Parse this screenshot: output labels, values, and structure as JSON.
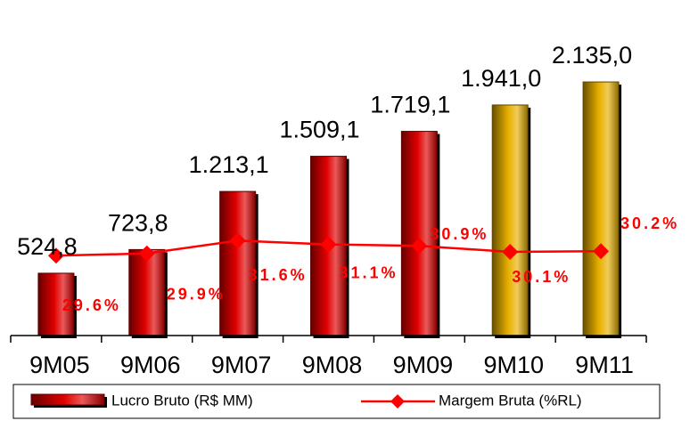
{
  "chart_data": {
    "type": "bar_line",
    "categories": [
      "9M05",
      "9M06",
      "9M07",
      "9M08",
      "9M09",
      "9M10",
      "9M11"
    ],
    "series": [
      {
        "name": "Lucro Bruto (R$ MM)",
        "type": "bar",
        "colors": [
          "#e00000",
          "#e00000",
          "#e00000",
          "#e00000",
          "#e00000",
          "#e8b000",
          "#e8b000"
        ],
        "values": [
          524.8,
          723.8,
          1213.1,
          1509.1,
          1719.1,
          1941.0,
          2135.0
        ],
        "value_labels": [
          "524,8",
          "723,8",
          "1.213,1",
          "1.509,1",
          "1.719,1",
          "1.941,0",
          "2.135,0"
        ]
      },
      {
        "name": "Margem Bruta (%RL)",
        "type": "line",
        "axis": "y2",
        "color": "#ff0000",
        "values": [
          29.6,
          29.9,
          31.6,
          31.1,
          30.9,
          30.1,
          30.2
        ],
        "value_labels": [
          "29.6%",
          "29.9%",
          "31.6%",
          "31.1%",
          "30.9%",
          "30.1%",
          "30.2%"
        ]
      }
    ],
    "ylim": [
      0,
      2600
    ],
    "y2lim": [
      19,
      60
    ]
  }
}
